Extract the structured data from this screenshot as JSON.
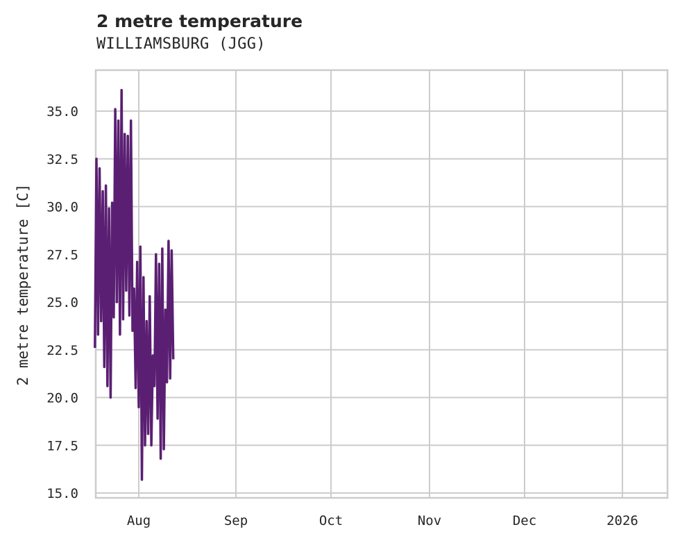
{
  "header": {
    "title": "2 metre temperature",
    "subtitle": "WILLIAMSBURG (JGG)"
  },
  "chart_data": {
    "type": "line",
    "title": "2 metre temperature",
    "subtitle": "WILLIAMSBURG (JGG)",
    "xlabel": "",
    "ylabel": "2 metre temperature [C]",
    "ylim": [
      14.8,
      36.8
    ],
    "yticks": [
      "15.0",
      "17.5",
      "20.0",
      "22.5",
      "25.0",
      "27.5",
      "30.0",
      "32.5",
      "35.0"
    ],
    "xticks": [
      "Aug",
      "Sep",
      "Oct",
      "Nov",
      "Dec",
      "2026"
    ],
    "xlim": [
      "2025-07-18",
      "2026-01-15"
    ],
    "grid": true,
    "legend": null,
    "series_color": "#5a1f72",
    "series": [
      {
        "name": "2 metre temperature",
        "x": [
          "2025-07-18",
          "2025-07-18",
          "2025-07-19",
          "2025-07-19",
          "2025-07-20",
          "2025-07-20",
          "2025-07-21",
          "2025-07-21",
          "2025-07-22",
          "2025-07-22",
          "2025-07-23",
          "2025-07-23",
          "2025-07-24",
          "2025-07-24",
          "2025-07-25",
          "2025-07-25",
          "2025-07-26",
          "2025-07-26",
          "2025-07-27",
          "2025-07-27",
          "2025-07-28",
          "2025-07-28",
          "2025-07-29",
          "2025-07-29",
          "2025-07-30",
          "2025-07-30",
          "2025-07-31",
          "2025-07-31",
          "2025-08-01",
          "2025-08-01",
          "2025-08-02",
          "2025-08-02",
          "2025-08-03",
          "2025-08-03",
          "2025-08-04",
          "2025-08-04",
          "2025-08-05",
          "2025-08-05",
          "2025-08-06",
          "2025-08-06",
          "2025-08-07",
          "2025-08-07",
          "2025-08-08",
          "2025-08-08",
          "2025-08-09",
          "2025-08-09",
          "2025-08-10",
          "2025-08-10",
          "2025-08-11",
          "2025-08-11",
          "2025-08-12"
        ],
        "values": [
          22.6,
          32.5,
          23.3,
          32.0,
          24.0,
          30.8,
          21.6,
          31.1,
          20.6,
          29.9,
          20.0,
          30.2,
          24.2,
          35.1,
          25.0,
          34.5,
          23.3,
          36.1,
          24.1,
          33.8,
          25.6,
          33.7,
          24.3,
          34.5,
          23.5,
          25.7,
          20.5,
          27.1,
          19.5,
          27.9,
          15.7,
          26.3,
          17.5,
          24.0,
          18.1,
          25.3,
          17.5,
          22.2,
          20.6,
          27.5,
          18.9,
          27.0,
          16.8,
          27.8,
          17.3,
          24.6,
          20.8,
          28.2,
          21.0,
          27.7,
          22.0
        ]
      }
    ]
  }
}
